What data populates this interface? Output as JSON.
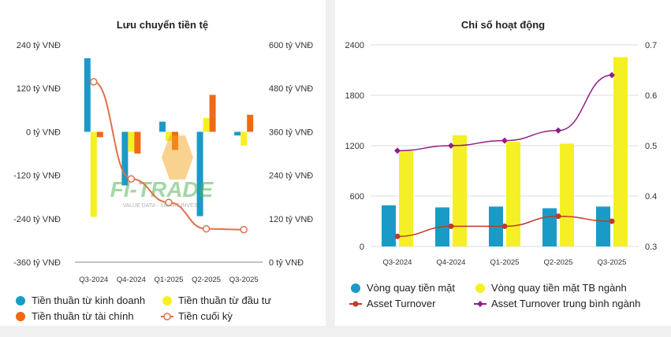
{
  "chart_data": [
    {
      "type": "bar",
      "title": "Lưu chuyển tiền tệ",
      "categories": [
        "Q3-2024",
        "Q4-2024",
        "Q1-2025",
        "Q2-2025",
        "Q3-2025"
      ],
      "left_axis": {
        "min": -360,
        "max": 240,
        "ticks": [
          240,
          120,
          0,
          -120,
          -240,
          -360
        ],
        "tick_labels": [
          "240 tỷ VNĐ",
          "120 tỷ VNĐ",
          "0 tỷ VNĐ",
          "-120 tỷ VNĐ",
          "-240 tỷ VNĐ",
          "-360 tỷ VNĐ"
        ]
      },
      "right_axis": {
        "min": 0,
        "max": 600,
        "ticks": [
          600,
          480,
          360,
          240,
          120,
          0
        ],
        "tick_labels": [
          "600 tỷ VNĐ",
          "480 tỷ VNĐ",
          "360 tỷ VNĐ",
          "240 tỷ VNĐ",
          "120 tỷ VNĐ",
          "0 tỷ VNĐ"
        ]
      },
      "series": [
        {
          "name": "Tiền thuần từ kinh doanh",
          "type": "bar",
          "axis": "left",
          "color": "#1a9bc7",
          "values": [
            203,
            -148,
            28,
            -233,
            -10
          ]
        },
        {
          "name": "Tiền thuần từ đầu tư",
          "type": "bar",
          "axis": "left",
          "color": "#f5f025",
          "values": [
            -235,
            -55,
            -25,
            38,
            -38
          ]
        },
        {
          "name": "Tiền thuần từ tài chính",
          "type": "bar",
          "axis": "left",
          "color": "#f06a16",
          "values": [
            -15,
            -60,
            -50,
            102,
            47
          ]
        },
        {
          "name": "Tiền cuối kỳ",
          "type": "line",
          "axis": "right",
          "color": "#e0714a",
          "values": [
            498,
            230,
            165,
            92,
            90
          ]
        }
      ]
    },
    {
      "type": "bar",
      "title": "Chỉ số hoạt động",
      "categories": [
        "Q3-2024",
        "Q4-2024",
        "Q1-2025",
        "Q2-2025",
        "Q3-2025"
      ],
      "left_axis": {
        "min": 0,
        "max": 2400,
        "ticks": [
          2400,
          1800,
          1200,
          600,
          0
        ],
        "tick_labels": [
          "2400",
          "1800",
          "1200",
          "600",
          "0"
        ]
      },
      "right_axis": {
        "min": 0.3,
        "max": 0.7,
        "ticks": [
          0.7,
          0.6,
          0.5,
          0.4,
          0.3
        ],
        "tick_labels": [
          "0.7",
          "0.6",
          "0.5",
          "0.4",
          "0.3"
        ]
      },
      "series": [
        {
          "name": "Vòng quay tiền mặt",
          "type": "bar",
          "axis": "left",
          "color": "#1a9bc7",
          "values": [
            490,
            465,
            475,
            455,
            475
          ]
        },
        {
          "name": "Vòng quay tiền mặt TB ngành",
          "type": "bar",
          "axis": "left",
          "color": "#f5f025",
          "values": [
            1140,
            1325,
            1245,
            1225,
            2255
          ]
        },
        {
          "name": "Asset Turnover",
          "type": "line",
          "axis": "right",
          "color": "#c0392b",
          "values": [
            0.32,
            0.34,
            0.34,
            0.36,
            0.35
          ]
        },
        {
          "name": "Asset Turnover trung bình ngành",
          "type": "line",
          "axis": "right",
          "color": "#8e1f86",
          "values": [
            0.49,
            0.5,
            0.51,
            0.53,
            0.64
          ]
        }
      ]
    }
  ],
  "watermark": {
    "brand": "FI-TRADE",
    "tagline": "VALUE DATA - SMART INVEST"
  }
}
